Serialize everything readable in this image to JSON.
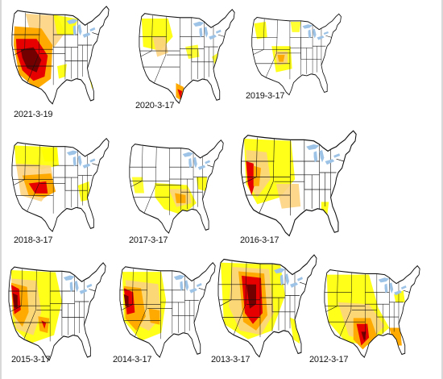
{
  "figure": {
    "colors": {
      "abnormally_dry": "#ffff00",
      "moderate": "#fcd37f",
      "severe": "#ffaa00",
      "extreme": "#e60000",
      "exceptional": "#730000",
      "water": "#9dc3e6",
      "boundary": "#111111"
    },
    "maps": [
      {
        "date": "2021-3-19"
      },
      {
        "date": "2020-3-17"
      },
      {
        "date": "2019-3-17"
      },
      {
        "date": "2018-3-17"
      },
      {
        "date": "2017-3-17"
      },
      {
        "date": "2016-3-17"
      },
      {
        "date": "2015-3-17"
      },
      {
        "date": "2014-3-17"
      },
      {
        "date": "2013-3-17"
      },
      {
        "date": "2012-3-17"
      }
    ]
  }
}
